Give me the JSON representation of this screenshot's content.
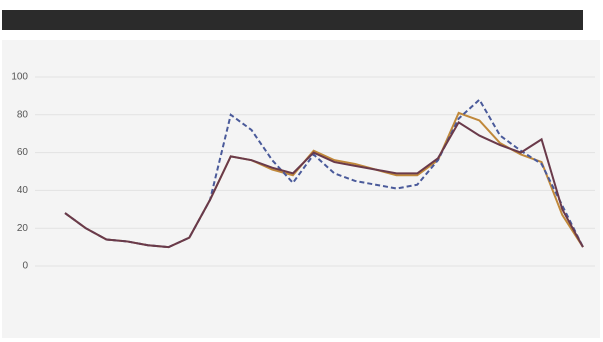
{
  "chart_data": {
    "type": "line",
    "categories": [
      null,
      null,
      null,
      null,
      null,
      null,
      null,
      null,
      null,
      null,
      null,
      null,
      null,
      null,
      null,
      null,
      null,
      null,
      null,
      null,
      null,
      null,
      null,
      null,
      null,
      null
    ],
    "series": [
      {
        "color": "#c0883a",
        "dash": false,
        "values": [
          28,
          20,
          14,
          13,
          11,
          10,
          15,
          35,
          58,
          56,
          51,
          48,
          61,
          56,
          54,
          51,
          48,
          48,
          56,
          81,
          77,
          65,
          59,
          55,
          27,
          10
        ]
      },
      {
        "color": "#4a5a9a",
        "dash": true,
        "values": [
          28,
          20,
          14,
          13,
          11,
          10,
          15,
          35,
          80,
          72,
          56,
          44,
          59,
          49,
          45,
          43,
          41,
          43,
          56,
          78,
          88,
          69,
          61,
          54,
          32,
          10
        ]
      },
      {
        "color": "#6a3a4a",
        "dash": false,
        "values": [
          28,
          20,
          14,
          13,
          11,
          10,
          15,
          35,
          58,
          56,
          52,
          49,
          60,
          55,
          53,
          51,
          49,
          49,
          57,
          76,
          69,
          64,
          60,
          67,
          30,
          10
        ]
      }
    ],
    "ylim": [
      0,
      100
    ],
    "yticks": [
      0,
      20,
      40,
      60,
      80,
      100
    ],
    "grid": true
  }
}
